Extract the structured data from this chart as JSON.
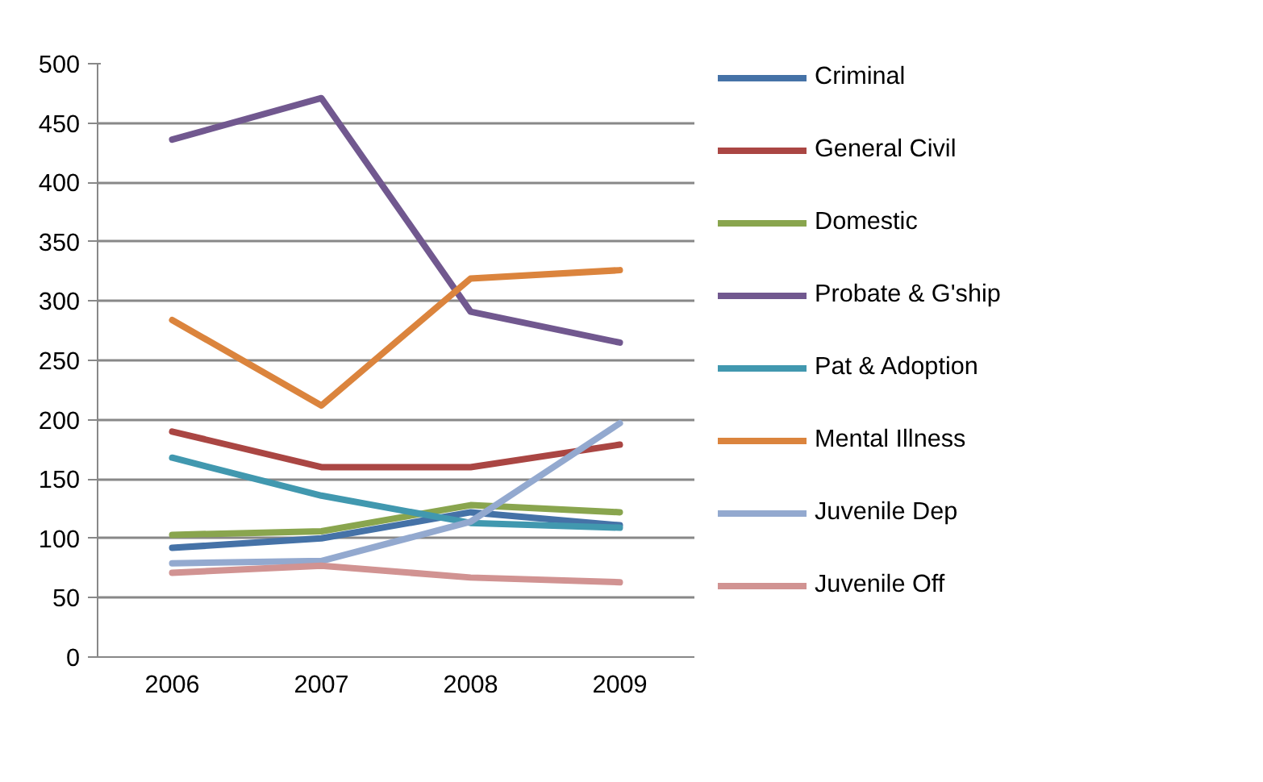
{
  "chart_data": {
    "type": "line",
    "categories": [
      "2006",
      "2007",
      "2008",
      "2009"
    ],
    "ylim": [
      0,
      500
    ],
    "yticks": [
      0,
      50,
      100,
      150,
      200,
      250,
      300,
      350,
      400,
      450,
      500
    ],
    "grid": "y",
    "legend": "right",
    "marker": "none",
    "line_style": "solid",
    "series": [
      {
        "name": "Criminal",
        "color": "#4572a7",
        "values": [
          92,
          100,
          122,
          111
        ]
      },
      {
        "name": "General Civil",
        "color": "#aa4643",
        "values": [
          190,
          160,
          160,
          179
        ]
      },
      {
        "name": "Domestic",
        "color": "#89a54e",
        "values": [
          103,
          106,
          128,
          122
        ]
      },
      {
        "name": "Probate & G'ship",
        "color": "#71588f",
        "values": [
          436,
          471,
          291,
          265
        ]
      },
      {
        "name": "Pat & Adoption",
        "color": "#4198af",
        "values": [
          168,
          136,
          113,
          109
        ]
      },
      {
        "name": "Mental Illness",
        "color": "#db843d",
        "values": [
          284,
          212,
          319,
          326
        ]
      },
      {
        "name": "Juvenile Dep",
        "color": "#93a9cf",
        "values": [
          79,
          81,
          114,
          197
        ]
      },
      {
        "name": "Juvenile Off",
        "color": "#d19392",
        "values": [
          71,
          77,
          67,
          63
        ]
      }
    ]
  }
}
